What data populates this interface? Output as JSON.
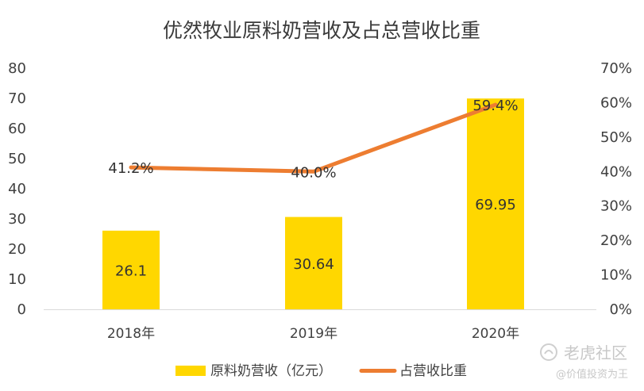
{
  "chart_data": {
    "type": "bar",
    "title": "优然牧业原料奶营收及占总营收比重",
    "categories": [
      "2018年",
      "2019年",
      "2020年"
    ],
    "series": [
      {
        "name": "原料奶营收（亿元）",
        "type": "bar",
        "axis": "left",
        "values": [
          26.1,
          30.64,
          69.95
        ],
        "labels": [
          "26.1",
          "30.64",
          "69.95"
        ],
        "color": "#FFD700"
      },
      {
        "name": "占营收比重",
        "type": "line",
        "axis": "right",
        "values": [
          41.2,
          40.0,
          59.4
        ],
        "labels": [
          "41.2%",
          "40.0%",
          "59.4%"
        ],
        "color": "#ED7D31"
      }
    ],
    "y_left": {
      "min": 0,
      "max": 80,
      "ticks": [
        "0",
        "10",
        "20",
        "30",
        "40",
        "50",
        "60",
        "70",
        "80"
      ]
    },
    "y_right": {
      "min": 0,
      "max": 70,
      "ticks": [
        "0%",
        "10%",
        "20%",
        "30%",
        "40%",
        "50%",
        "60%",
        "70%"
      ]
    },
    "grid": false,
    "legend": "bottom"
  },
  "watermark": {
    "main": "老虎社区",
    "sub": "@价值投资为王"
  }
}
